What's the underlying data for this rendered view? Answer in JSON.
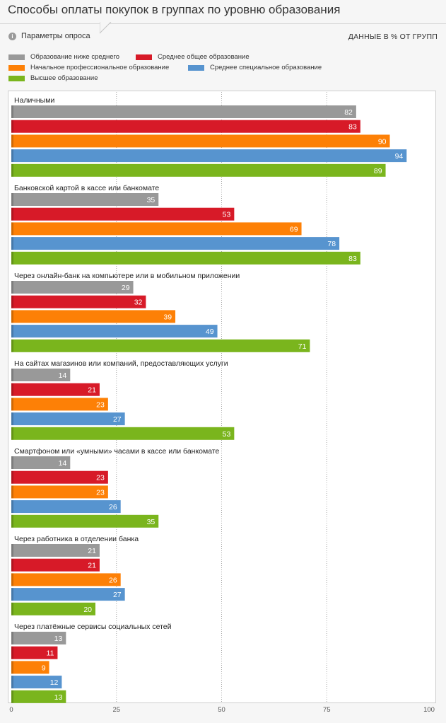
{
  "title": "Способы оплаты покупок в группах по уровню образования",
  "params_label": "Параметры опроса",
  "info_icon": "i",
  "units_label": "ДАННЫЕ В % ОТ ГРУПП",
  "chart_data": {
    "type": "bar",
    "orientation": "horizontal",
    "xlim": [
      0,
      100
    ],
    "xticks": [
      "0",
      "25",
      "50",
      "75",
      "100"
    ],
    "grid": true,
    "legend_position": "top",
    "categories": [
      "Наличными",
      "Банковской картой в кассе или банкомате",
      "Через онлайн-банк на компьютере или в мобильном приложении",
      "На сайтах магазинов или компаний, предоставляющих услуги",
      "Смартфоном или «умными» часами в кассе или банкомате",
      "Через работника в отделении банка",
      "Через платёжные сервисы социальных сетей"
    ],
    "series": [
      {
        "name": "Образование ниже среднего",
        "color": "#999999",
        "values": [
          82,
          35,
          29,
          14,
          14,
          21,
          13
        ]
      },
      {
        "name": "Среднее общее образование",
        "color": "#d71a28",
        "values": [
          83,
          53,
          32,
          21,
          23,
          21,
          11
        ]
      },
      {
        "name": "Начальное профессиональное образование",
        "color": "#fd8006",
        "values": [
          90,
          69,
          39,
          23,
          23,
          26,
          9
        ]
      },
      {
        "name": "Среднее специальное образование",
        "color": "#5794cf",
        "values": [
          94,
          78,
          49,
          27,
          26,
          27,
          12
        ]
      },
      {
        "name": "Высшее образование",
        "color": "#7ab51d",
        "values": [
          89,
          83,
          71,
          53,
          35,
          20,
          13
        ]
      }
    ]
  }
}
